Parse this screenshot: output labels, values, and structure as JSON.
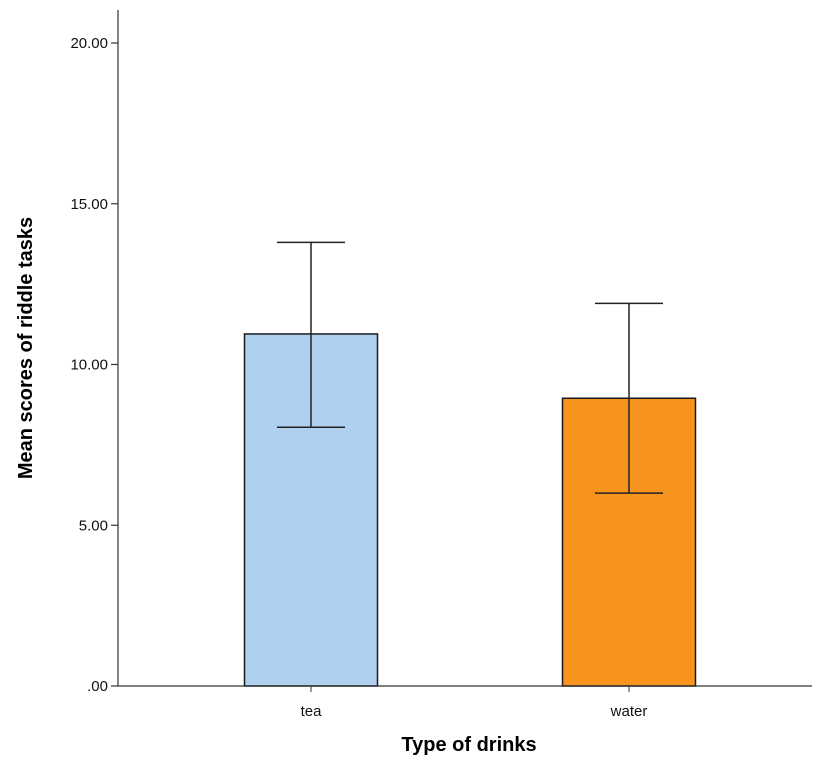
{
  "chart_data": {
    "type": "bar",
    "title": "",
    "xlabel": "Type of drinks",
    "ylabel": "Mean scores of  riddle tasks",
    "categories": [
      "tea",
      "water"
    ],
    "values": [
      10.95,
      8.95
    ],
    "error_bars": {
      "upper": [
        13.8,
        11.9
      ],
      "lower": [
        8.05,
        6.0
      ]
    },
    "bar_colors": [
      "#aecfee",
      "#f7941d"
    ],
    "ylim": [
      0,
      20
    ],
    "y_ticks": [
      0,
      5,
      10,
      15,
      20
    ],
    "y_tick_labels": [
      ".00",
      "5.00",
      "10.00",
      "15.00",
      "20.00"
    ],
    "grid": false,
    "legend": "none"
  }
}
